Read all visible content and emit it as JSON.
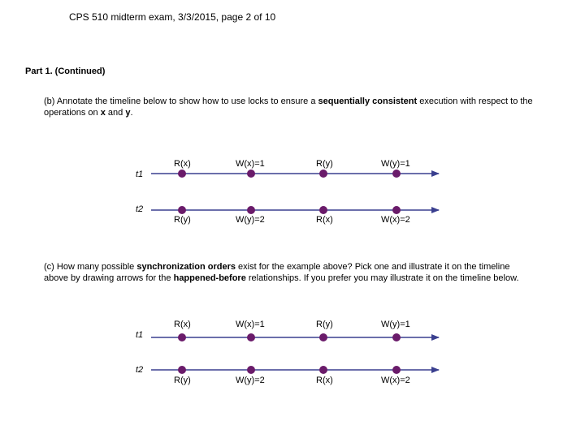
{
  "header": {
    "course": "CPS 510 midterm exam, 3/3/2015",
    "page": ", page 2 of 10"
  },
  "part_title": "Part 1. (Continued)",
  "section_b": {
    "line1_pre": "(b) Annotate the timeline below to show how to use locks to ensure a ",
    "line1_bold": "sequentially consistent",
    "line1_post": " execution with respect to the",
    "line2_pre": "operations on ",
    "var_x": "x",
    "line2_mid": " and ",
    "var_y": "y",
    "line2_post": "."
  },
  "section_c": {
    "line1_pre": "(c) How many possible ",
    "line1_bold": "synchronization orders",
    "line1_post": " exist for the example above?  Pick one and illustrate it on the timeline",
    "line2_pre": "above by drawing arrows for the ",
    "line2_bold": "happened-before",
    "line2_post": " relationships.  If you prefer you may illustrate it on the timeline below."
  },
  "timelines": [
    {
      "t1_label": "t1",
      "t2_label": "t2",
      "t1_ops": [
        "R(x)",
        "W(x)=1",
        "R(y)",
        "W(y)=1"
      ],
      "t2_ops": [
        "R(y)",
        "W(y)=2",
        "R(x)",
        "W(x)=2"
      ]
    },
    {
      "t1_label": "t1",
      "t2_label": "t2",
      "t1_ops": [
        "R(x)",
        "W(x)=1",
        "R(y)",
        "W(y)=1"
      ],
      "t2_ops": [
        "R(y)",
        "W(y)=2",
        "R(x)",
        "W(x)=2"
      ]
    }
  ],
  "colors": {
    "line": "#3a3f8f",
    "dot": "#6a1b6a"
  }
}
